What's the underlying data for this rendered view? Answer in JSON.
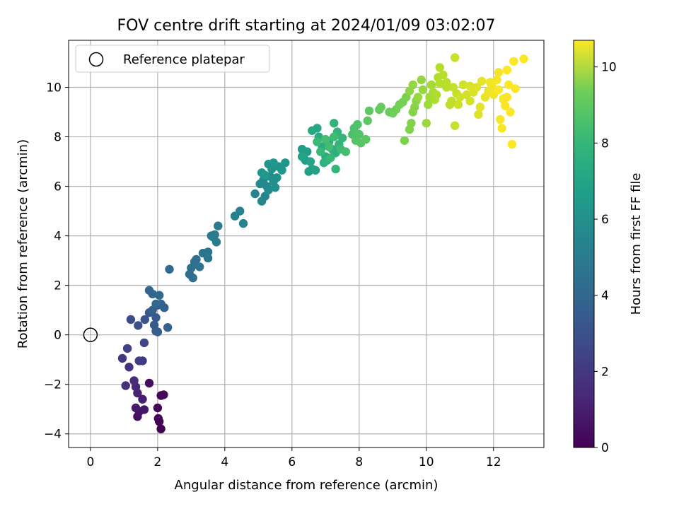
{
  "chart_data": {
    "type": "scatter",
    "title": "FOV centre drift starting at 2024/01/09 03:02:07",
    "xlabel": "Angular distance from reference (arcmin)",
    "ylabel": "Rotation from reference (arcmin)",
    "xlim": [
      -0.65,
      13.5
    ],
    "ylim": [
      -4.55,
      11.9
    ],
    "xticks": [
      0,
      2,
      4,
      6,
      8,
      10,
      12
    ],
    "yticks": [
      -4,
      -2,
      0,
      2,
      4,
      6,
      8,
      10
    ],
    "grid": true,
    "legend": {
      "placement": "top-left",
      "entries": [
        "Reference platepar"
      ]
    },
    "reference_point": {
      "label": "Reference platepar",
      "x": 0,
      "y": 0
    },
    "colorbar": {
      "label": "Hours from first FF file",
      "min": 0,
      "max": 10.7,
      "ticks": [
        0,
        2,
        4,
        6,
        8,
        10
      ],
      "colormap": "viridis"
    },
    "series": [
      {
        "columns": [
          "x",
          "y",
          "hours"
        ],
        "points": [
          [
            2.1,
            -3.8,
            0.0
          ],
          [
            2.05,
            -3.5,
            0.05
          ],
          [
            2.02,
            -3.38,
            0.1
          ],
          [
            2.0,
            -2.95,
            0.15
          ],
          [
            2.1,
            -2.45,
            0.2
          ],
          [
            2.18,
            -2.42,
            0.25
          ],
          [
            1.75,
            -1.95,
            0.35
          ],
          [
            1.4,
            -3.3,
            0.45
          ],
          [
            1.45,
            -3.1,
            0.55
          ],
          [
            1.6,
            -3.02,
            0.65
          ],
          [
            1.35,
            -2.95,
            0.75
          ],
          [
            1.55,
            -2.6,
            0.9
          ],
          [
            1.4,
            -2.35,
            1.05
          ],
          [
            1.35,
            -2.1,
            1.2
          ],
          [
            1.3,
            -1.85,
            1.35
          ],
          [
            1.05,
            -2.05,
            1.5
          ],
          [
            1.15,
            -1.3,
            1.6
          ],
          [
            0.95,
            -0.95,
            1.75
          ],
          [
            1.55,
            -1.05,
            1.85
          ],
          [
            1.45,
            -1.05,
            1.95
          ],
          [
            1.1,
            -0.55,
            2.1
          ],
          [
            1.6,
            -0.32,
            2.25
          ],
          [
            1.2,
            0.62,
            2.45
          ],
          [
            1.42,
            0.38,
            2.6
          ],
          [
            1.62,
            0.62,
            2.75
          ],
          [
            1.75,
            0.9,
            2.9
          ],
          [
            1.95,
            0.7,
            3.0
          ],
          [
            1.9,
            0.4,
            3.05
          ],
          [
            1.95,
            0.15,
            3.1
          ],
          [
            2.0,
            0.12,
            3.15
          ],
          [
            2.0,
            1.2,
            3.2
          ],
          [
            1.85,
            1.0,
            3.25
          ],
          [
            2.1,
            1.25,
            3.3
          ],
          [
            2.2,
            1.1,
            3.35
          ],
          [
            2.3,
            0.3,
            3.4
          ],
          [
            1.75,
            1.8,
            3.45
          ],
          [
            1.85,
            1.65,
            3.5
          ],
          [
            2.05,
            1.6,
            3.55
          ],
          [
            1.95,
            1.25,
            3.6
          ],
          [
            2.35,
            2.65,
            3.7
          ],
          [
            2.95,
            2.45,
            3.8
          ],
          [
            3.05,
            2.3,
            3.85
          ],
          [
            3.0,
            2.7,
            3.9
          ],
          [
            3.1,
            2.95,
            3.95
          ],
          [
            3.15,
            3.05,
            4.0
          ],
          [
            3.25,
            2.75,
            4.05
          ],
          [
            3.35,
            3.3,
            4.1
          ],
          [
            3.5,
            3.35,
            4.15
          ],
          [
            3.5,
            3.1,
            4.2
          ],
          [
            3.6,
            4.0,
            4.3
          ],
          [
            3.7,
            4.05,
            4.4
          ],
          [
            3.75,
            3.75,
            4.45
          ],
          [
            3.8,
            4.4,
            4.5
          ],
          [
            3.65,
            3.95,
            4.55
          ],
          [
            4.3,
            4.8,
            4.65
          ],
          [
            4.45,
            5.0,
            4.75
          ],
          [
            4.55,
            4.5,
            4.8
          ],
          [
            4.9,
            5.7,
            4.85
          ],
          [
            5.1,
            5.4,
            4.9
          ],
          [
            5.2,
            5.6,
            4.95
          ],
          [
            5.05,
            6.1,
            5.0
          ],
          [
            5.15,
            6.25,
            5.05
          ],
          [
            5.25,
            6.0,
            5.1
          ],
          [
            5.3,
            5.85,
            5.15
          ],
          [
            5.35,
            6.4,
            5.2
          ],
          [
            5.45,
            6.2,
            5.25
          ],
          [
            5.5,
            5.95,
            5.3
          ],
          [
            5.55,
            6.35,
            5.35
          ],
          [
            5.4,
            6.7,
            5.4
          ],
          [
            5.6,
            6.8,
            5.45
          ],
          [
            5.3,
            6.9,
            5.5
          ],
          [
            5.1,
            6.55,
            5.55
          ],
          [
            5.7,
            6.65,
            5.6
          ],
          [
            5.8,
            6.95,
            5.65
          ],
          [
            5.45,
            6.95,
            5.7
          ],
          [
            5.2,
            6.45,
            5.75
          ],
          [
            6.3,
            7.5,
            5.85
          ],
          [
            6.35,
            7.3,
            5.9
          ],
          [
            6.4,
            7.05,
            5.95
          ],
          [
            6.45,
            7.4,
            6.0
          ],
          [
            6.5,
            6.6,
            6.05
          ],
          [
            6.6,
            6.7,
            6.1
          ],
          [
            6.7,
            6.65,
            6.15
          ],
          [
            6.55,
            7.0,
            6.2
          ],
          [
            6.3,
            7.2,
            6.25
          ],
          [
            6.6,
            8.25,
            6.35
          ],
          [
            6.75,
            8.35,
            6.4
          ],
          [
            6.8,
            8.0,
            6.5
          ],
          [
            6.9,
            7.6,
            6.55
          ],
          [
            7.0,
            7.2,
            6.6
          ],
          [
            7.1,
            7.8,
            6.65
          ],
          [
            7.2,
            7.5,
            6.7
          ],
          [
            7.3,
            7.35,
            6.75
          ],
          [
            7.05,
            7.05,
            6.8
          ],
          [
            6.95,
            6.95,
            6.85
          ],
          [
            7.25,
            8.55,
            6.9
          ],
          [
            7.35,
            8.2,
            6.95
          ],
          [
            7.4,
            7.7,
            7.0
          ],
          [
            7.5,
            7.95,
            7.05
          ],
          [
            7.3,
            6.7,
            7.1
          ],
          [
            7.15,
            7.15,
            7.15
          ],
          [
            6.85,
            7.4,
            7.2
          ],
          [
            6.75,
            7.8,
            7.25
          ],
          [
            7.45,
            7.5,
            7.3
          ],
          [
            7.25,
            8.0,
            7.35
          ],
          [
            7.1,
            7.6,
            7.4
          ],
          [
            7.0,
            7.9,
            7.45
          ],
          [
            7.6,
            7.4,
            7.5
          ],
          [
            7.8,
            8.1,
            7.6
          ],
          [
            7.85,
            8.35,
            7.65
          ],
          [
            7.95,
            8.5,
            7.7
          ],
          [
            8.0,
            8.1,
            7.75
          ],
          [
            7.9,
            7.85,
            7.8
          ],
          [
            8.05,
            7.75,
            7.85
          ],
          [
            8.2,
            7.9,
            7.9
          ],
          [
            8.25,
            8.65,
            7.95
          ],
          [
            8.3,
            9.05,
            8.0
          ],
          [
            8.6,
            9.1,
            8.1
          ],
          [
            8.65,
            9.2,
            8.15
          ],
          [
            8.9,
            9.0,
            8.25
          ],
          [
            9.0,
            8.95,
            8.3
          ],
          [
            9.1,
            9.1,
            8.35
          ],
          [
            9.2,
            9.3,
            8.4
          ],
          [
            9.3,
            9.4,
            8.45
          ],
          [
            9.4,
            9.6,
            8.5
          ],
          [
            9.35,
            7.85,
            8.55
          ],
          [
            9.5,
            8.3,
            8.6
          ],
          [
            9.55,
            8.55,
            8.65
          ],
          [
            9.6,
            9.0,
            8.7
          ],
          [
            9.65,
            9.2,
            8.75
          ],
          [
            9.7,
            9.45,
            8.8
          ],
          [
            9.5,
            9.85,
            8.85
          ],
          [
            9.6,
            10.1,
            8.9
          ],
          [
            9.85,
            10.3,
            8.95
          ],
          [
            9.9,
            9.9,
            9.0
          ],
          [
            9.75,
            9.6,
            9.05
          ],
          [
            10.0,
            8.55,
            9.1
          ],
          [
            10.05,
            9.3,
            9.15
          ],
          [
            10.1,
            9.6,
            9.2
          ],
          [
            10.15,
            10.1,
            9.25
          ],
          [
            10.2,
            9.8,
            9.3
          ],
          [
            10.25,
            9.5,
            9.35
          ],
          [
            10.3,
            9.7,
            9.4
          ],
          [
            10.35,
            10.4,
            9.45
          ],
          [
            10.4,
            10.8,
            9.5
          ],
          [
            10.5,
            10.5,
            9.55
          ],
          [
            10.6,
            10.2,
            9.6
          ],
          [
            10.7,
            9.3,
            9.65
          ],
          [
            10.75,
            9.45,
            9.7
          ],
          [
            10.9,
            9.75,
            9.75
          ],
          [
            10.8,
            10.0,
            9.8
          ],
          [
            10.85,
            11.2,
            9.85
          ],
          [
            11.0,
            9.6,
            9.9
          ],
          [
            11.1,
            10.1,
            9.95
          ],
          [
            11.2,
            9.7,
            10.0
          ],
          [
            11.3,
            9.45,
            10.05
          ],
          [
            11.4,
            9.8,
            10.1
          ],
          [
            11.5,
            10.0,
            10.15
          ],
          [
            11.55,
            8.9,
            10.2
          ],
          [
            11.6,
            9.2,
            10.25
          ],
          [
            11.65,
            10.25,
            10.3
          ],
          [
            11.75,
            9.6,
            10.35
          ],
          [
            11.85,
            9.85,
            10.4
          ],
          [
            11.95,
            10.05,
            10.45
          ],
          [
            12.0,
            9.7,
            10.5
          ],
          [
            12.1,
            10.3,
            10.55
          ],
          [
            12.15,
            10.6,
            10.55
          ],
          [
            12.2,
            8.7,
            10.6
          ],
          [
            12.25,
            8.35,
            10.6
          ],
          [
            12.3,
            9.5,
            10.62
          ],
          [
            12.35,
            9.25,
            10.63
          ],
          [
            12.4,
            9.6,
            10.64
          ],
          [
            12.45,
            10.1,
            10.65
          ],
          [
            12.5,
            9.0,
            10.66
          ],
          [
            12.55,
            7.7,
            10.67
          ],
          [
            12.6,
            11.05,
            10.68
          ],
          [
            12.65,
            9.95,
            10.69
          ],
          [
            12.9,
            11.15,
            10.7
          ],
          [
            12.4,
            10.7,
            10.7
          ],
          [
            12.15,
            9.9,
            10.65
          ],
          [
            11.9,
            10.2,
            10.5
          ],
          [
            11.3,
            10.05,
            10.1
          ],
          [
            10.95,
            9.3,
            9.9
          ],
          [
            10.6,
            10.0,
            9.6
          ],
          [
            10.4,
            10.15,
            9.5
          ],
          [
            10.85,
            8.45,
            9.8
          ],
          [
            12.3,
            9.55,
            10.6
          ]
        ]
      }
    ]
  }
}
